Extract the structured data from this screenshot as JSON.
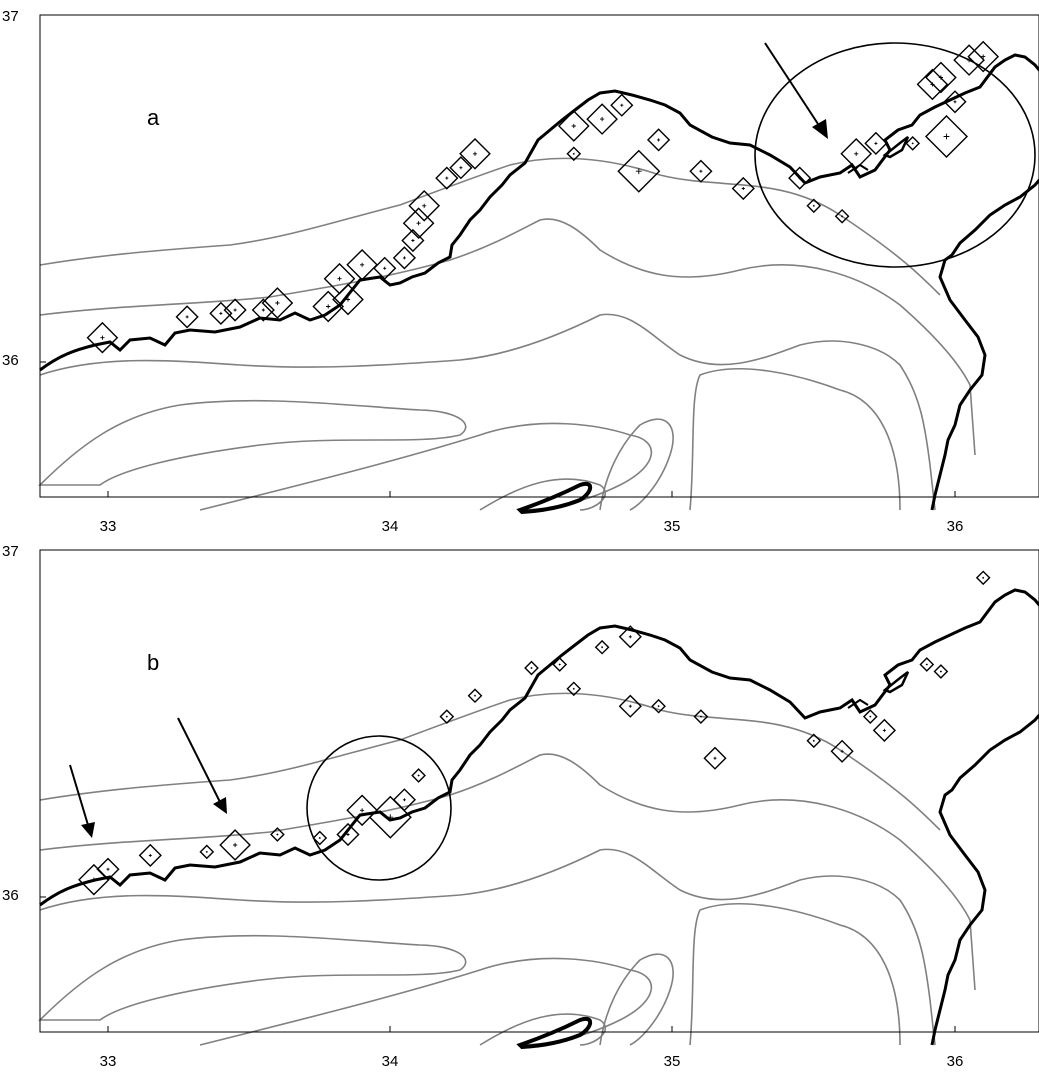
{
  "figure": {
    "panels": [
      {
        "id": "a",
        "label": "a"
      },
      {
        "id": "b",
        "label": "b"
      }
    ],
    "axes": {
      "x_ticks": [
        "33",
        "34",
        "35",
        "36"
      ],
      "y_ticks": [
        "37",
        "36"
      ]
    },
    "colors": {
      "coastline": "#000000",
      "bathymetry_contours": "#808080",
      "markers": "#000000",
      "background": "#ffffff"
    },
    "marker_symbol": "diamond with cross at center; size varies by magnitude",
    "annotations": {
      "a": [
        "circle highlighting eastern bay",
        "arrow pointing to bay coastline"
      ],
      "b": [
        "two arrows pointing to western coastal stations",
        "circle highlighting cluster near 34E"
      ]
    }
  },
  "chart_data": [
    {
      "type": "scatter",
      "panel": "a",
      "xlim": [
        32.8,
        36.3
      ],
      "ylim": [
        35.6,
        37.0
      ],
      "x_ticks": [
        33,
        34,
        35,
        36
      ],
      "y_ticks": [
        36,
        37
      ],
      "points": [
        [
          32.98,
          36.07,
          3
        ],
        [
          33.28,
          36.13,
          2
        ],
        [
          33.4,
          36.14,
          2
        ],
        [
          33.45,
          36.15,
          2
        ],
        [
          33.55,
          36.15,
          2
        ],
        [
          33.6,
          36.17,
          3
        ],
        [
          33.78,
          36.16,
          3
        ],
        [
          33.85,
          36.18,
          3
        ],
        [
          33.82,
          36.24,
          3
        ],
        [
          33.9,
          36.28,
          3
        ],
        [
          33.98,
          36.27,
          2
        ],
        [
          34.05,
          36.3,
          2
        ],
        [
          34.08,
          36.35,
          2
        ],
        [
          34.1,
          36.4,
          3
        ],
        [
          34.12,
          36.45,
          3
        ],
        [
          34.2,
          36.53,
          2
        ],
        [
          34.25,
          36.56,
          2
        ],
        [
          34.3,
          36.6,
          3
        ],
        [
          34.65,
          36.68,
          3
        ],
        [
          34.75,
          36.7,
          3
        ],
        [
          34.82,
          36.74,
          2
        ],
        [
          34.65,
          36.6,
          1
        ],
        [
          34.95,
          36.64,
          2
        ],
        [
          34.88,
          36.55,
          4
        ],
        [
          35.1,
          36.55,
          2
        ],
        [
          35.25,
          36.5,
          2
        ],
        [
          35.45,
          36.53,
          2
        ],
        [
          35.5,
          36.45,
          1
        ],
        [
          35.6,
          36.42,
          1
        ],
        [
          35.65,
          36.6,
          3
        ],
        [
          35.72,
          36.63,
          2
        ],
        [
          35.85,
          36.63,
          1
        ],
        [
          35.92,
          36.8,
          3
        ],
        [
          35.95,
          36.82,
          3
        ],
        [
          36.0,
          36.75,
          2
        ],
        [
          36.05,
          36.87,
          3
        ],
        [
          36.1,
          36.88,
          3
        ],
        [
          35.97,
          36.65,
          4
        ]
      ]
    },
    {
      "type": "scatter",
      "panel": "b",
      "xlim": [
        32.8,
        36.3
      ],
      "ylim": [
        35.6,
        37.0
      ],
      "x_ticks": [
        33,
        34,
        35,
        36
      ],
      "y_ticks": [
        36,
        37
      ],
      "points": [
        [
          32.95,
          36.05,
          3
        ],
        [
          33.0,
          36.08,
          2
        ],
        [
          33.15,
          36.12,
          2
        ],
        [
          33.35,
          36.13,
          1
        ],
        [
          33.45,
          36.15,
          3
        ],
        [
          33.6,
          36.18,
          1
        ],
        [
          33.75,
          36.17,
          1
        ],
        [
          33.85,
          36.18,
          2
        ],
        [
          33.9,
          36.25,
          3
        ],
        [
          34.0,
          36.23,
          4
        ],
        [
          34.05,
          36.28,
          2
        ],
        [
          34.1,
          36.35,
          1
        ],
        [
          34.2,
          36.52,
          1
        ],
        [
          34.3,
          36.58,
          1
        ],
        [
          34.6,
          36.67,
          1
        ],
        [
          34.75,
          36.72,
          1
        ],
        [
          34.85,
          36.75,
          2
        ],
        [
          34.5,
          36.66,
          1
        ],
        [
          34.65,
          36.6,
          1
        ],
        [
          34.85,
          36.55,
          2
        ],
        [
          34.95,
          36.55,
          1
        ],
        [
          35.1,
          36.52,
          1
        ],
        [
          35.15,
          36.4,
          2
        ],
        [
          35.5,
          36.45,
          1
        ],
        [
          35.6,
          36.42,
          2
        ],
        [
          35.7,
          36.52,
          1
        ],
        [
          35.75,
          36.48,
          2
        ],
        [
          35.9,
          36.67,
          1
        ],
        [
          35.95,
          36.65,
          1
        ],
        [
          36.1,
          36.92,
          1
        ]
      ]
    }
  ]
}
